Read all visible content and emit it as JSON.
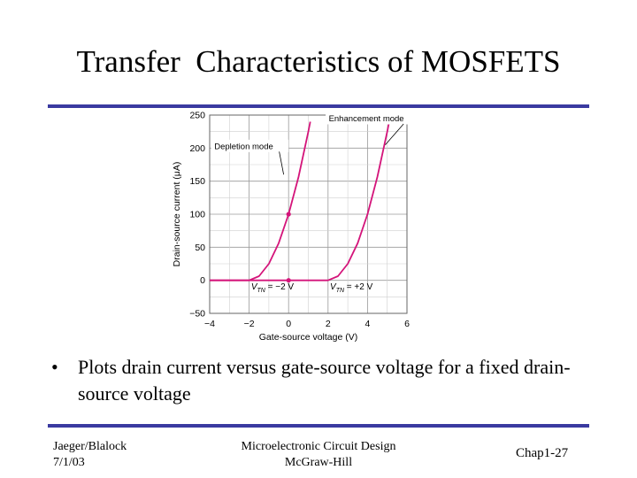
{
  "slide": {
    "title": "Transfer  Characteristics of MOSFETS",
    "bullet": "Plots drain current versus gate-source voltage for a fixed drain-source voltage",
    "footer_left_line1": "Jaeger/Blalock",
    "footer_left_line2": "7/1/03",
    "footer_center_line1": "Microelectronic Circuit Design",
    "footer_center_line2": "McGraw-Hill",
    "footer_right": "Chap1-27",
    "rule_color": "#3a3aa0"
  },
  "chart_data": {
    "type": "line",
    "xlabel": "Gate-source voltage (V)",
    "ylabel": "Drain-source current (μA)",
    "xlim": [
      -4,
      6
    ],
    "ylim": [
      -50,
      250
    ],
    "xticks": [
      -4,
      -2,
      0,
      2,
      4,
      6
    ],
    "yticks": [
      -50,
      0,
      50,
      100,
      150,
      200,
      250
    ],
    "grid": true,
    "series_color": "#d4147a",
    "series": [
      {
        "name": "Depletion mode",
        "x": [
          -4,
          -2,
          -1.5,
          -1,
          -0.5,
          0,
          0.5,
          1,
          1.1
        ],
        "y": [
          0,
          0,
          6.25,
          25,
          56.25,
          100,
          156.25,
          225,
          240
        ]
      },
      {
        "name": "Enhancement mode",
        "x": [
          -4,
          2,
          2.5,
          3,
          3.5,
          4,
          4.5,
          5,
          5.1
        ],
        "y": [
          0,
          0,
          6.25,
          25,
          56.25,
          100,
          156.25,
          225,
          240
        ]
      }
    ],
    "markers": [
      {
        "x": 0,
        "y": 0
      },
      {
        "x": 0,
        "y": 100
      }
    ],
    "annotations": [
      {
        "text_main": "V",
        "sub": "TN",
        "rest": " = −2 V",
        "x": -1.9,
        "y": -14
      },
      {
        "text_main": "V",
        "sub": "TN",
        "rest": " = +2 V",
        "x": 2.1,
        "y": -14
      }
    ],
    "callouts": [
      {
        "label": "Depletion mode",
        "box_x": -3.9,
        "box_y": 200,
        "arrow_to_x": -0.25,
        "arrow_to_y": 160
      },
      {
        "label": "Enhancement mode",
        "box_x": 1.9,
        "box_y": 242,
        "arrow_to_x": 4.9,
        "arrow_to_y": 205
      }
    ]
  }
}
